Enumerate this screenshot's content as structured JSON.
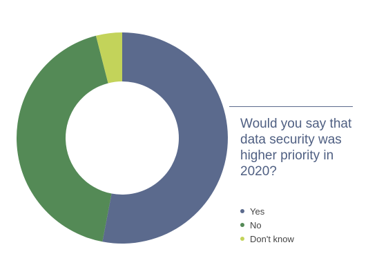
{
  "question": "Would you say that data security was higher priority in 2020?",
  "chart_data": {
    "type": "pie",
    "variant": "donut",
    "categories": [
      "Yes",
      "No",
      "Don't know"
    ],
    "values": [
      53,
      43,
      4
    ],
    "colors": [
      "#5b6a8d",
      "#548a56",
      "#c3d35a"
    ],
    "legend_position": "right"
  }
}
